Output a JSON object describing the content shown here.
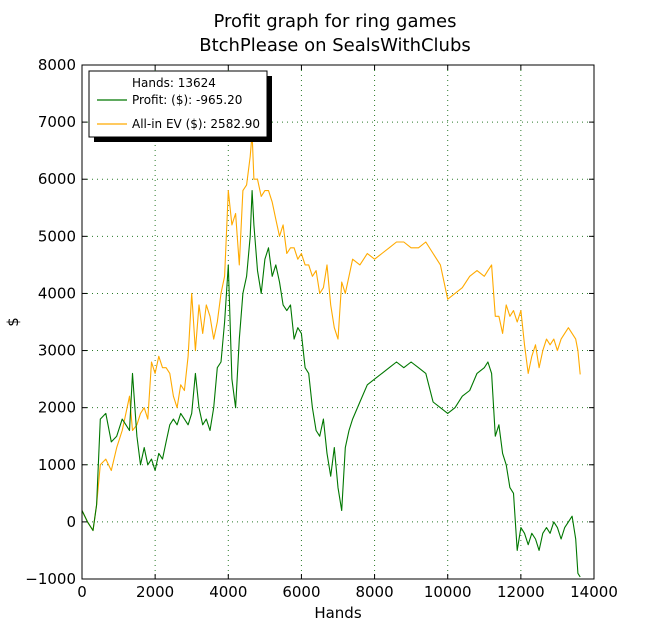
{
  "chart_data": {
    "type": "line",
    "title": [
      "Profit graph for ring games",
      "BtchPlease on SealsWithClubs"
    ],
    "xlabel": "Hands",
    "ylabel": "$",
    "xlim": [
      0,
      14000
    ],
    "ylim": [
      -1000,
      8000
    ],
    "xticks": [
      0,
      2000,
      4000,
      6000,
      8000,
      10000,
      12000,
      14000
    ],
    "yticks": [
      -1000,
      0,
      1000,
      2000,
      3000,
      4000,
      5000,
      6000,
      7000,
      8000
    ],
    "grid": true,
    "legend": {
      "placement": "top-left",
      "header": "Hands: 13624",
      "entries": [
        "Profit: ($): -965.20",
        "All-in EV ($): 2582.90"
      ]
    },
    "series": [
      {
        "name": "Profit: ($): -965.20",
        "color": "#007700",
        "x": [
          0,
          150,
          300,
          400,
          500,
          650,
          800,
          950,
          1100,
          1200,
          1300,
          1380,
          1500,
          1600,
          1700,
          1800,
          1900,
          2000,
          2100,
          2200,
          2300,
          2400,
          2500,
          2600,
          2700,
          2800,
          2900,
          3000,
          3100,
          3200,
          3300,
          3400,
          3500,
          3600,
          3700,
          3800,
          3900,
          4000,
          4100,
          4200,
          4300,
          4400,
          4500,
          4600,
          4650,
          4700,
          4800,
          4900,
          5000,
          5100,
          5200,
          5300,
          5400,
          5500,
          5600,
          5700,
          5800,
          5900,
          6000,
          6100,
          6200,
          6300,
          6400,
          6500,
          6600,
          6700,
          6800,
          6900,
          7000,
          7100,
          7200,
          7300,
          7400,
          7600,
          7800,
          8000,
          8200,
          8400,
          8600,
          8800,
          9000,
          9200,
          9400,
          9600,
          9800,
          10000,
          10200,
          10400,
          10600,
          10800,
          11000,
          11100,
          11200,
          11300,
          11400,
          11500,
          11600,
          11700,
          11800,
          11900,
          12000,
          12100,
          12200,
          12300,
          12400,
          12500,
          12600,
          12700,
          12800,
          12900,
          13000,
          13100,
          13200,
          13300,
          13400,
          13500,
          13560,
          13624
        ],
        "y": [
          200,
          0,
          -150,
          300,
          1800,
          1900,
          1400,
          1500,
          1800,
          1700,
          1600,
          2600,
          1500,
          1000,
          1300,
          1000,
          1100,
          900,
          1200,
          1100,
          1400,
          1700,
          1800,
          1700,
          1900,
          1800,
          1700,
          1900,
          2600,
          2000,
          1700,
          1800,
          1600,
          2000,
          2700,
          2800,
          3500,
          4500,
          2500,
          2000,
          3200,
          4000,
          4300,
          5000,
          5800,
          5200,
          4400,
          4000,
          4600,
          4800,
          4300,
          4500,
          4200,
          3800,
          3700,
          3800,
          3200,
          3400,
          3300,
          2700,
          2600,
          2000,
          1600,
          1500,
          1800,
          1200,
          800,
          1300,
          600,
          200,
          1300,
          1600,
          1800,
          2100,
          2400,
          2500,
          2600,
          2700,
          2800,
          2700,
          2800,
          2700,
          2600,
          2100,
          2000,
          1900,
          2000,
          2200,
          2300,
          2600,
          2700,
          2800,
          2600,
          1500,
          1700,
          1200,
          1000,
          600,
          500,
          -500,
          -100,
          -200,
          -400,
          -200,
          -300,
          -500,
          -200,
          -100,
          -200,
          0,
          -100,
          -300,
          -100,
          0,
          100,
          -300,
          -900,
          -965.2
        ]
      },
      {
        "name": "All-in EV ($): 2582.90",
        "color": "#ffaa00",
        "x": [
          0,
          150,
          300,
          400,
          500,
          650,
          800,
          950,
          1100,
          1200,
          1300,
          1380,
          1500,
          1600,
          1700,
          1800,
          1900,
          2000,
          2100,
          2200,
          2300,
          2400,
          2500,
          2600,
          2700,
          2800,
          2900,
          3000,
          3100,
          3200,
          3300,
          3400,
          3500,
          3600,
          3700,
          3800,
          3900,
          4000,
          4100,
          4200,
          4300,
          4400,
          4500,
          4600,
          4650,
          4700,
          4800,
          4900,
          5000,
          5100,
          5200,
          5300,
          5400,
          5500,
          5600,
          5700,
          5800,
          5900,
          6000,
          6100,
          6200,
          6300,
          6400,
          6500,
          6600,
          6700,
          6800,
          6900,
          7000,
          7100,
          7200,
          7300,
          7400,
          7600,
          7800,
          8000,
          8200,
          8400,
          8600,
          8800,
          9000,
          9200,
          9400,
          9600,
          9800,
          10000,
          10200,
          10400,
          10600,
          10800,
          11000,
          11100,
          11200,
          11300,
          11400,
          11500,
          11600,
          11700,
          11800,
          11900,
          12000,
          12100,
          12200,
          12300,
          12400,
          12500,
          12600,
          12700,
          12800,
          12900,
          13000,
          13100,
          13200,
          13300,
          13400,
          13500,
          13560,
          13624
        ],
        "y": [
          200,
          0,
          -150,
          300,
          1000,
          1100,
          900,
          1300,
          1600,
          1900,
          2200,
          1600,
          1700,
          1900,
          2000,
          1800,
          2800,
          2600,
          2900,
          2700,
          2700,
          2600,
          2200,
          2000,
          2400,
          2300,
          2900,
          4000,
          3000,
          3800,
          3300,
          3800,
          3600,
          3200,
          3500,
          4000,
          4300,
          5800,
          5200,
          5400,
          4500,
          5800,
          5900,
          6400,
          6800,
          6000,
          6000,
          5700,
          5800,
          5800,
          5600,
          5300,
          5000,
          5200,
          4700,
          4800,
          4800,
          4600,
          4700,
          4500,
          4500,
          4300,
          4400,
          4000,
          4100,
          4500,
          3800,
          3400,
          3200,
          4200,
          4000,
          4300,
          4600,
          4500,
          4700,
          4600,
          4700,
          4800,
          4900,
          4900,
          4800,
          4800,
          4900,
          4700,
          4500,
          3900,
          4000,
          4100,
          4300,
          4400,
          4300,
          4400,
          4500,
          3600,
          3600,
          3300,
          3800,
          3600,
          3700,
          3500,
          3700,
          3100,
          2600,
          2900,
          3100,
          2700,
          3000,
          3200,
          3100,
          3200,
          3000,
          3200,
          3300,
          3400,
          3300,
          3200,
          3000,
          2582.9
        ]
      }
    ]
  }
}
